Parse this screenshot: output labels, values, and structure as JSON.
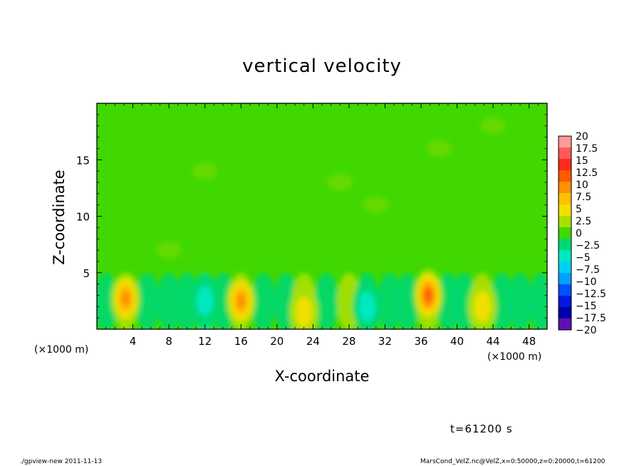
{
  "chart_data": {
    "type": "heatmap",
    "title": "vertical velocity",
    "xlabel": "X-coordinate",
    "ylabel": "Z-coordinate",
    "x_unit": "(×1000 m)",
    "y_unit": "(×1000 m)",
    "xlim": [
      0,
      50
    ],
    "ylim": [
      0,
      20
    ],
    "x_ticks": [
      4,
      8,
      12,
      16,
      20,
      24,
      28,
      32,
      36,
      40,
      44,
      48
    ],
    "y_ticks": [
      5,
      10,
      15
    ],
    "colorbar": {
      "labels": [
        "20",
        "17.5",
        "15",
        "12.5",
        "10",
        "7.5",
        "5",
        "2.5",
        "0",
        "−2.5",
        "−5",
        "−7.5",
        "−10",
        "−12.5",
        "−15",
        "−17.5",
        "−20"
      ],
      "colors": [
        "#ff9a9a",
        "#ff5a5a",
        "#ff2a1a",
        "#ff5a00",
        "#ff9000",
        "#ffc000",
        "#f0e000",
        "#a8e000",
        "#40d800",
        "#00d870",
        "#00e8c0",
        "#00d0f0",
        "#00a0ff",
        "#0050ff",
        "#0018e0",
        "#0000a8",
        "#6010b0"
      ]
    },
    "features": [
      {
        "x": 3.2,
        "z": 2.7,
        "peak": 9
      },
      {
        "x": 16.0,
        "z": 2.5,
        "peak": 10
      },
      {
        "x": 36.8,
        "z": 3.0,
        "peak": 12
      },
      {
        "x": 12.0,
        "z": 2.5,
        "peak": -6
      },
      {
        "x": 23.0,
        "z": 1.5,
        "peak": 6
      },
      {
        "x": 42.8,
        "z": 2.0,
        "peak": 6
      },
      {
        "x": 30.0,
        "z": 2.0,
        "peak": -4
      }
    ],
    "background_value": 0
  },
  "annotation": {
    "time": "t=61200 s"
  },
  "footer": {
    "left": "./gpview-new   2011-11-13",
    "right": "MarsCond_VelZ.nc@VelZ,x=0:50000,z=0:20000,t=61200"
  }
}
